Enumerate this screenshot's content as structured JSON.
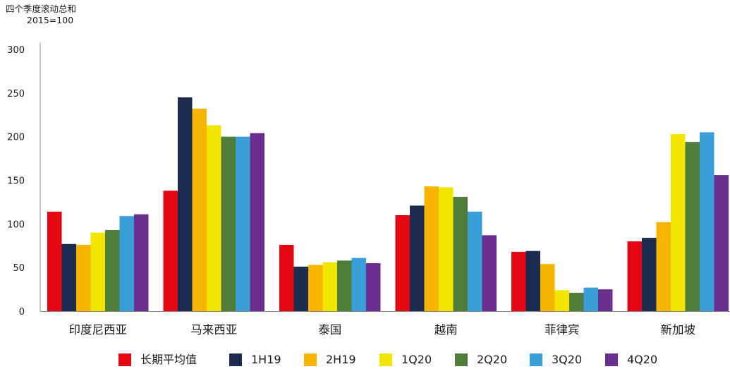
{
  "chart_data": {
    "type": "bar",
    "ylabel_lines": [
      "四个季度滚动总和",
      "2015=100"
    ],
    "ylim": [
      0,
      300
    ],
    "yticks": [
      0,
      50,
      100,
      150,
      200,
      250,
      300
    ],
    "categories": [
      "印度尼西亚",
      "马来西亚",
      "泰国",
      "越南",
      "菲律宾",
      "新加坡"
    ],
    "series": [
      {
        "name": "长期平均值",
        "color": "#e30613",
        "values": [
          114,
          138,
          76,
          110,
          68,
          80
        ]
      },
      {
        "name": "1H19",
        "color": "#1c2c50",
        "values": [
          77,
          245,
          51,
          121,
          69,
          84
        ]
      },
      {
        "name": "2H19",
        "color": "#f7b500",
        "values": [
          76,
          232,
          53,
          143,
          54,
          102
        ]
      },
      {
        "name": "1Q20",
        "color": "#f2e500",
        "values": [
          90,
          213,
          56,
          142,
          24,
          203
        ]
      },
      {
        "name": "2Q20",
        "color": "#4e7e3a",
        "values": [
          93,
          200,
          58,
          131,
          21,
          194
        ]
      },
      {
        "name": "3Q20",
        "color": "#3a9ed9",
        "values": [
          109,
          200,
          61,
          114,
          27,
          205
        ]
      },
      {
        "name": "4Q20",
        "color": "#6a2f8e",
        "values": [
          111,
          204,
          55,
          87,
          25,
          156
        ]
      }
    ],
    "grid": false,
    "legend_position": "bottom"
  }
}
